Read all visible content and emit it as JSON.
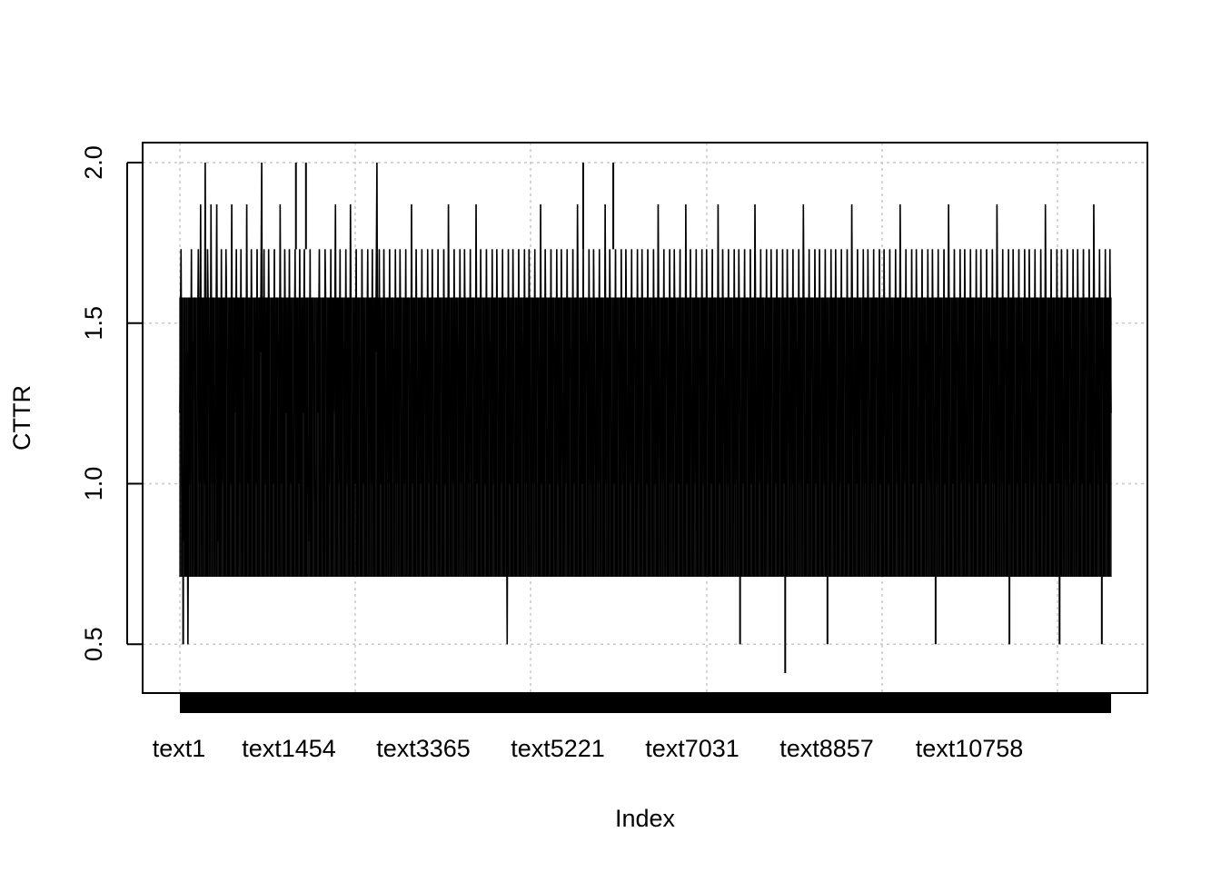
{
  "chart_data": {
    "type": "line",
    "xlabel": "Index",
    "ylabel": "CTTR",
    "x_tick_labels": [
      "text1",
      "text1454",
      "text3365",
      "text5221",
      "text7031",
      "text8857",
      "text10758"
    ],
    "y_tick_labels": [
      "0.5",
      "1.0",
      "1.5",
      "2.0"
    ],
    "y_ticks": [
      0.5,
      1.0,
      1.5,
      2.0
    ],
    "ylim": [
      0.41,
      2.0
    ],
    "grid": true,
    "n_points": 13000,
    "series": [
      {
        "sampled_values": [
          1.22,
          1.73,
          1.0,
          0.82,
          1.58,
          0.71,
          1.41,
          0.5,
          1.58,
          1.0,
          1.73,
          0.71,
          1.41,
          1.58,
          0.71,
          1.22,
          1.73,
          1.0,
          1.87,
          0.71,
          1.58,
          1.0,
          2.0,
          0.71,
          1.73,
          1.41,
          0.71,
          1.87,
          1.0,
          1.58,
          0.71,
          1.22,
          1.87,
          0.82,
          1.58,
          0.71,
          1.73,
          1.0,
          1.58,
          0.71,
          1.73,
          1.41,
          0.71,
          1.58,
          1.0,
          1.87,
          0.71,
          1.58,
          1.22,
          1.73,
          0.71,
          1.58,
          1.0,
          1.73,
          0.71,
          1.58,
          1.41,
          0.71,
          1.87,
          1.0,
          1.58,
          0.71,
          1.73,
          1.22,
          0.71,
          1.58,
          1.0,
          1.73,
          0.71,
          1.58,
          1.41,
          2.0,
          0.71,
          1.73,
          1.0,
          1.58,
          0.71,
          1.73,
          1.22,
          0.71,
          1.58,
          1.0,
          1.73,
          0.71,
          1.58,
          1.41,
          0.71,
          1.87,
          1.0,
          1.58,
          0.71,
          1.73,
          1.22,
          1.58,
          0.71,
          1.73,
          1.0,
          1.58,
          0.71,
          1.22,
          1.73,
          0.71,
          1.58,
          1.0,
          1.73,
          0.71,
          1.58,
          1.22,
          1.73,
          0.71,
          1.58,
          1.0,
          0.82,
          1.73,
          0.71,
          1.58,
          1.41,
          1.0,
          0.71,
          1.58,
          1.22,
          1.73,
          0.71,
          1.0,
          1.58,
          0.71,
          1.73,
          1.41,
          0.71,
          1.58,
          1.0,
          1.73,
          0.71,
          1.58,
          1.22,
          1.87,
          0.71,
          1.58,
          1.0,
          1.73,
          0.71,
          1.58,
          1.41,
          0.71,
          1.73,
          1.0,
          1.58,
          0.71,
          1.87,
          1.22,
          0.71,
          1.58,
          1.0,
          1.73,
          0.71,
          1.58,
          1.41,
          0.71,
          1.73,
          1.0,
          1.58,
          0.71,
          1.22,
          1.73,
          0.71,
          1.58,
          1.0,
          1.73,
          0.71,
          1.58,
          1.41,
          2.0,
          0.71,
          1.73,
          1.0,
          1.58,
          0.71,
          1.73,
          1.22,
          0.71,
          1.58,
          1.0,
          1.73,
          0.71,
          1.58,
          1.41,
          0.71,
          1.73,
          1.0,
          1.58,
          0.71,
          1.73,
          1.22,
          0.71,
          1.58,
          1.0,
          1.73,
          0.71,
          1.58,
          1.41,
          0.71,
          1.87,
          1.0,
          1.58,
          0.71,
          1.73,
          1.22,
          0.71,
          1.58,
          1.0,
          1.73,
          0.71,
          1.58,
          1.41,
          0.71,
          1.73,
          1.0,
          1.58,
          0.71,
          1.73,
          1.22,
          0.71,
          1.58,
          1.0,
          1.73,
          0.71,
          1.58,
          1.41,
          0.71,
          1.73,
          1.0,
          1.58,
          0.71,
          1.87,
          1.22,
          0.71,
          1.58,
          1.0,
          1.73,
          0.71,
          1.58,
          1.41,
          0.71,
          1.73,
          1.0,
          1.58,
          0.71,
          1.73,
          1.22,
          0.71,
          1.58,
          1.0,
          1.73,
          0.71,
          1.58,
          1.41,
          0.71,
          1.87,
          1.0,
          1.58,
          0.71,
          1.73,
          1.22,
          0.71,
          1.58,
          1.0,
          1.73,
          0.71,
          1.58,
          1.41,
          0.71,
          1.73,
          1.0,
          1.58,
          0.71,
          1.73,
          1.22,
          0.71,
          1.58,
          1.0,
          1.73,
          0.71,
          1.58,
          1.41,
          0.5,
          1.73,
          1.0,
          1.58,
          0.71,
          1.73,
          1.22,
          0.71,
          1.58,
          1.0,
          1.73,
          0.71,
          1.58,
          1.41,
          0.71,
          1.73,
          1.0,
          1.58,
          0.71,
          1.73,
          1.22,
          0.71,
          1.58,
          1.0,
          1.73,
          0.71,
          1.58,
          1.41,
          0.71,
          1.87,
          1.0,
          1.58,
          0.71,
          1.73,
          1.22,
          0.71,
          1.58,
          1.0,
          1.73,
          0.71,
          1.58,
          1.41,
          0.71,
          1.73,
          1.0,
          1.58,
          0.71,
          1.73,
          1.22,
          0.71,
          1.58,
          1.0,
          1.73,
          0.71,
          1.58,
          1.41,
          0.71,
          1.73,
          1.0,
          1.58,
          0.71,
          1.87,
          1.22,
          0.71,
          1.58,
          1.0,
          1.73,
          0.71,
          1.58,
          1.41,
          0.71,
          1.73,
          1.0,
          1.58,
          0.71,
          1.73,
          1.22,
          0.71,
          1.58,
          1.0,
          1.73,
          0.71,
          1.58,
          1.41,
          0.71,
          1.87,
          1.0,
          1.58,
          0.71,
          1.73,
          1.22,
          0.71,
          1.58,
          1.0,
          1.73,
          0.71,
          1.58,
          1.41,
          0.71,
          1.73,
          1.0,
          1.58,
          0.71,
          1.73,
          1.22,
          0.71,
          1.58,
          1.0,
          1.73,
          0.71,
          1.58,
          1.41,
          0.71,
          1.73,
          1.0,
          1.58,
          0.71,
          1.73,
          1.22,
          0.71,
          1.58,
          1.0,
          1.73,
          0.71,
          1.58,
          1.41,
          0.71,
          1.73,
          1.0,
          1.58,
          0.71,
          1.87,
          1.22,
          0.71,
          1.58,
          1.0,
          1.73,
          0.71,
          1.58,
          1.41,
          0.71,
          1.73,
          1.0,
          1.58,
          0.71,
          1.73,
          1.22,
          0.71,
          1.58,
          1.0,
          1.73,
          0.71,
          1.58,
          1.41,
          0.71,
          1.87,
          1.0,
          1.58,
          0.71,
          1.73,
          1.22,
          0.71,
          1.58,
          1.0,
          1.73,
          0.71,
          1.58,
          1.41,
          0.71,
          1.73,
          1.0,
          1.58,
          0.71,
          1.73,
          1.22,
          0.71,
          1.58,
          1.0,
          1.73,
          0.71,
          1.58,
          1.41,
          0.71,
          1.87,
          1.0,
          1.58,
          0.71,
          1.73,
          1.22,
          0.71,
          1.58,
          1.0,
          1.73,
          0.71,
          1.58,
          1.41,
          0.71,
          1.73,
          1.0,
          1.58,
          0.71,
          1.73,
          1.22,
          0.71,
          1.58,
          1.0,
          1.73,
          0.71,
          1.58,
          1.41,
          0.71,
          1.73,
          1.0,
          1.58,
          0.71,
          1.87,
          1.22,
          0.71,
          1.58,
          1.0,
          1.73,
          0.71,
          1.58,
          1.41,
          0.71,
          1.73,
          1.0,
          1.58,
          0.71,
          1.73,
          1.22,
          0.71,
          1.58,
          1.0,
          1.73,
          0.71,
          1.58,
          1.41,
          0.71,
          1.73,
          1.0,
          1.58,
          0.71,
          1.73,
          1.22,
          0.71,
          1.58,
          1.0,
          1.73,
          0.71,
          1.58,
          1.41,
          0.71,
          1.73,
          1.0,
          1.58,
          0.71,
          1.87,
          1.22,
          0.71,
          1.58,
          1.0,
          1.73,
          0.71,
          1.58,
          1.41,
          0.71,
          1.73,
          1.0,
          1.58,
          0.71,
          1.73,
          1.22,
          0.71,
          1.58,
          1.0,
          1.73,
          0.71,
          1.58,
          1.41,
          0.71,
          1.73,
          1.0,
          1.58,
          0.71,
          1.73,
          1.22,
          0.71,
          1.58,
          1.0,
          1.73,
          0.71,
          1.58,
          1.41,
          0.71,
          1.73,
          1.0,
          1.58,
          0.71,
          1.87,
          1.22,
          0.71,
          1.58,
          1.0,
          1.73,
          0.71,
          1.58,
          1.41,
          0.71,
          1.73,
          1.0,
          1.58,
          0.71,
          1.73,
          1.22,
          0.71,
          1.58,
          1.0,
          1.73,
          0.71,
          1.58,
          1.41,
          0.71,
          1.73,
          1.0,
          1.58,
          0.71,
          1.73,
          1.22,
          0.71,
          1.58,
          1.0,
          1.73,
          0.71,
          1.58,
          1.41,
          0.71,
          1.73,
          1.0,
          1.58,
          0.71,
          1.87,
          1.22,
          0.71,
          1.58,
          1.0,
          1.73,
          0.71,
          1.58,
          1.41,
          0.71,
          1.73,
          1.0,
          1.58,
          0.71,
          1.73,
          1.22,
          0.71,
          1.58,
          1.0,
          1.73,
          0.71,
          1.58,
          1.41,
          0.71,
          1.73,
          1.0,
          1.58,
          0.71,
          1.73,
          1.22,
          0.71,
          1.58,
          1.0,
          1.73,
          0.71,
          1.58,
          1.41,
          0.71,
          1.73,
          1.0,
          1.58,
          0.71,
          1.87,
          1.22,
          0.71,
          1.58,
          1.0,
          1.73,
          0.71,
          1.58,
          1.41,
          0.71,
          1.73,
          1.0,
          1.58,
          0.71,
          1.73,
          1.22,
          0.71,
          1.58,
          1.0,
          1.73,
          0.71,
          1.58,
          1.41,
          0.71,
          1.73,
          1.0,
          1.58,
          0.71,
          1.73,
          1.22,
          0.71,
          1.58,
          1.0,
          1.73,
          0.71,
          1.58,
          1.41,
          0.71,
          1.73,
          1.0,
          1.58,
          0.71,
          1.87,
          1.22,
          0.71,
          1.58,
          1.0,
          1.73,
          0.71,
          1.58,
          1.41,
          0.71,
          1.73,
          1.0,
          1.58,
          0.71,
          1.73,
          1.22,
          0.71,
          1.58,
          1.0,
          1.73,
          0.71,
          1.58,
          1.41,
          0.71,
          1.73,
          1.0,
          1.58,
          0.71,
          1.73,
          1.22,
          0.71,
          1.58,
          1.0,
          1.73,
          0.71,
          1.58,
          1.41,
          0.71,
          1.73,
          1.0,
          1.58,
          0.71,
          1.87,
          1.22,
          0.71,
          1.58,
          1.0,
          1.73,
          0.71,
          1.58,
          1.41,
          0.71,
          1.73,
          1.0,
          1.58,
          0.71,
          1.73,
          1.22,
          0.71,
          1.58,
          1.0,
          1.73,
          0.71,
          1.58,
          1.41,
          0.71,
          1.73,
          1.0,
          1.58,
          0.71,
          1.73,
          1.22,
          0.71,
          1.58,
          1.0,
          1.73,
          0.71,
          1.58,
          1.41,
          0.71,
          1.73,
          1.0,
          1.58,
          0.71,
          1.87,
          1.22,
          0.71,
          1.58,
          1.0,
          1.73,
          0.71,
          1.58,
          1.41,
          0.71,
          1.73,
          1.0,
          1.58,
          0.71,
          1.73,
          1.22
        ]
      }
    ],
    "spikes": [
      {
        "x": 46,
        "y": 0.5
      },
      {
        "x": 7820,
        "y": 0.5
      },
      {
        "x": 8450,
        "y": 0.41
      },
      {
        "x": 9040,
        "y": 0.5
      },
      {
        "x": 10550,
        "y": 0.5
      },
      {
        "x": 11580,
        "y": 0.5
      },
      {
        "x": 12280,
        "y": 0.5
      },
      {
        "x": 12870,
        "y": 0.5
      },
      {
        "x": 1620,
        "y": 2.0
      },
      {
        "x": 1760,
        "y": 2.0
      },
      {
        "x": 5630,
        "y": 2.0
      },
      {
        "x": 6050,
        "y": 2.0
      }
    ]
  }
}
